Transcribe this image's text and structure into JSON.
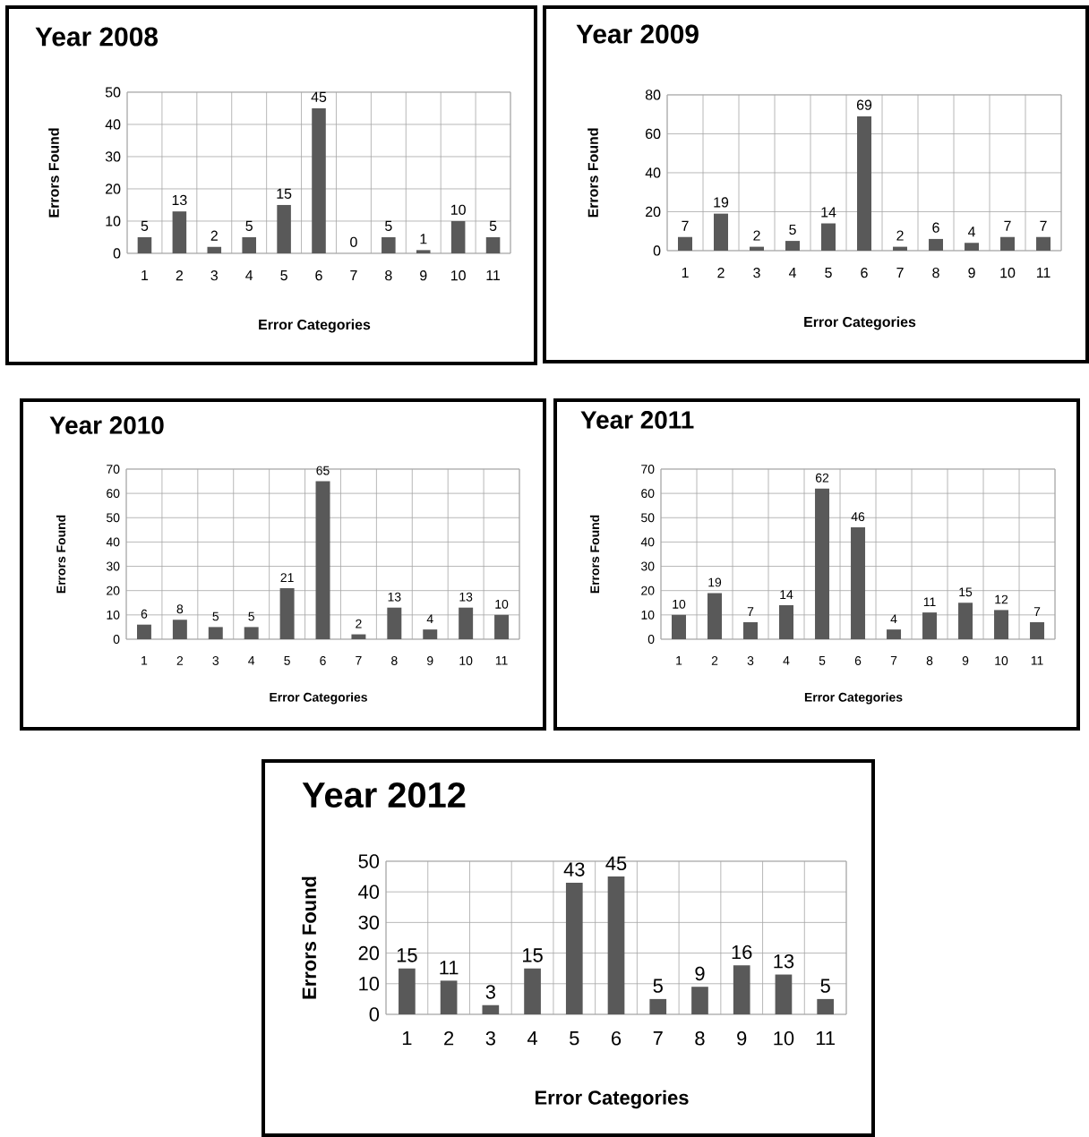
{
  "chart_data": [
    {
      "type": "bar",
      "title": "Year 2008",
      "xlabel": "Error Categories",
      "ylabel": "Errors Found",
      "categories": [
        "1",
        "2",
        "3",
        "4",
        "5",
        "6",
        "7",
        "8",
        "9",
        "10",
        "11"
      ],
      "values": [
        5,
        13,
        2,
        5,
        15,
        45,
        0,
        5,
        1,
        10,
        5
      ],
      "color": "#595959",
      "ylim": [
        0,
        50
      ],
      "yticks": [
        0,
        10,
        20,
        30,
        40,
        50
      ],
      "grid": true,
      "data_labels": true
    },
    {
      "type": "bar",
      "title": "Year 2009",
      "xlabel": "Error Categories",
      "ylabel": "Errors Found",
      "categories": [
        "1",
        "2",
        "3",
        "4",
        "5",
        "6",
        "7",
        "8",
        "9",
        "10",
        "11"
      ],
      "values": [
        7,
        19,
        2,
        5,
        14,
        69,
        2,
        6,
        4,
        7,
        7
      ],
      "color": "#595959",
      "ylim": [
        0,
        80
      ],
      "yticks": [
        0,
        20,
        40,
        60,
        80
      ],
      "grid": true,
      "data_labels": true
    },
    {
      "type": "bar",
      "title": "Year 2010",
      "xlabel": "Error Categories",
      "ylabel": "Errors Found",
      "categories": [
        "1",
        "2",
        "3",
        "4",
        "5",
        "6",
        "7",
        "8",
        "9",
        "10",
        "11"
      ],
      "values": [
        6,
        8,
        5,
        5,
        21,
        65,
        2,
        13,
        4,
        13,
        10
      ],
      "color": "#595959",
      "ylim": [
        0,
        70
      ],
      "yticks": [
        0,
        10,
        20,
        30,
        40,
        50,
        60,
        70
      ],
      "grid": true,
      "data_labels": true
    },
    {
      "type": "bar",
      "title": "Year 2011",
      "xlabel": "Error Categories",
      "ylabel": "Errors Found",
      "categories": [
        "1",
        "2",
        "3",
        "4",
        "5",
        "6",
        "7",
        "8",
        "9",
        "10",
        "11"
      ],
      "values": [
        10,
        19,
        7,
        14,
        62,
        46,
        4,
        11,
        15,
        12,
        7
      ],
      "color": "#595959",
      "ylim": [
        0,
        70
      ],
      "yticks": [
        0,
        10,
        20,
        30,
        40,
        50,
        60,
        70
      ],
      "grid": true,
      "data_labels": true
    },
    {
      "type": "bar",
      "title": "Year 2012",
      "xlabel": "Error Categories",
      "ylabel": "Errors Found",
      "categories": [
        "1",
        "2",
        "3",
        "4",
        "5",
        "6",
        "7",
        "8",
        "9",
        "10",
        "11"
      ],
      "values": [
        15,
        11,
        3,
        15,
        43,
        45,
        5,
        9,
        16,
        13,
        5
      ],
      "color": "#595959",
      "ylim": [
        0,
        50
      ],
      "yticks": [
        0,
        10,
        20,
        30,
        40,
        50
      ],
      "grid": true,
      "data_labels": true
    }
  ]
}
